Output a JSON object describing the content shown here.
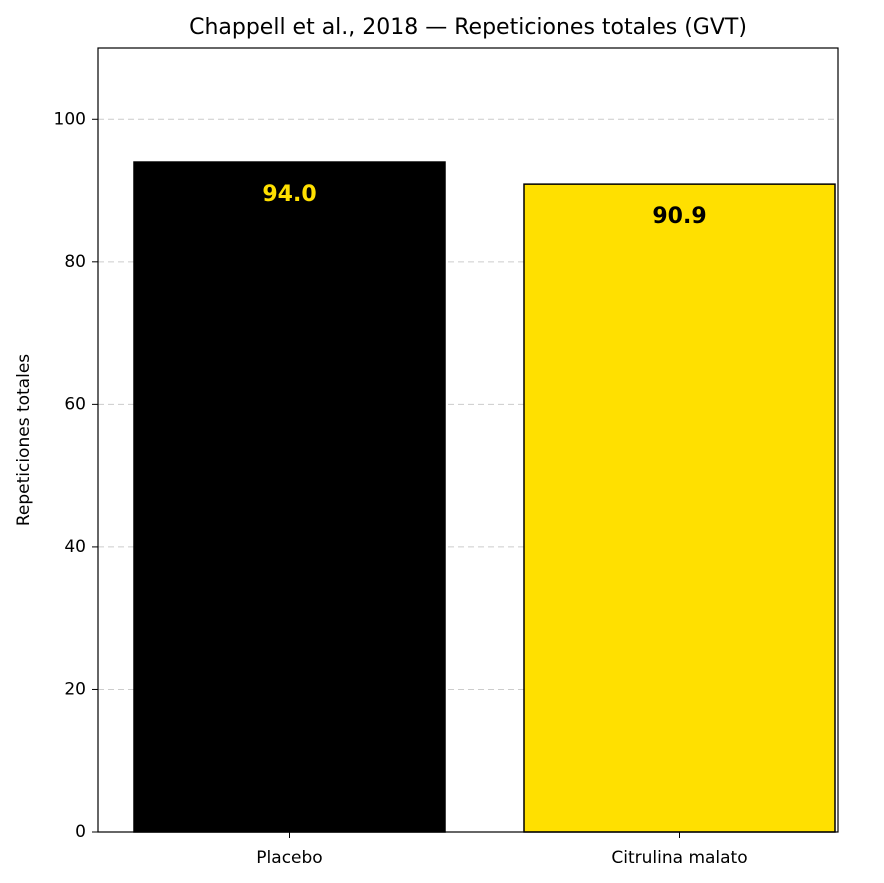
{
  "chart_data": {
    "type": "bar",
    "title": "Chappell et al., 2018 — Repeticiones totales (GVT)",
    "ylabel": "Repeticiones totales",
    "categories": [
      "Placebo",
      "Citrulina malato"
    ],
    "values": [
      94.0,
      90.9
    ],
    "value_labels": [
      "94.0",
      "90.9"
    ],
    "colors": [
      "#000000",
      "#ffe000"
    ],
    "value_label_colors": [
      "#ffe000",
      "#000000"
    ],
    "edgecolor": "#000000",
    "ylim": [
      0,
      110
    ],
    "yticks": [
      0,
      20,
      40,
      60,
      80,
      100
    ],
    "grid": true
  }
}
